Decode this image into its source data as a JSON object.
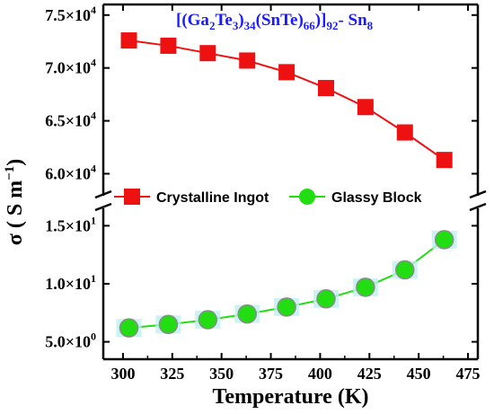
{
  "chart_data": {
    "type": "line",
    "title": "",
    "annotation": {
      "parts": [
        "[(Ga",
        "2",
        "Te",
        "3",
        ")",
        "34",
        "(SnTe)",
        "66",
        ")]",
        "92",
        "- Sn",
        "8"
      ],
      "subscript_mask": [
        false,
        true,
        false,
        true,
        false,
        true,
        false,
        true,
        false,
        true,
        false,
        true
      ]
    },
    "xlabel": "Temperature (K)",
    "ylabel": {
      "symbol": "σ",
      "unit_open": "( S m",
      "unit_exp": "−1",
      "unit_close": ")"
    },
    "xlim": [
      290,
      480
    ],
    "x_ticks": [
      300,
      325,
      350,
      375,
      400,
      425,
      450,
      475
    ],
    "x_tick_labels": [
      "300",
      "325",
      "350",
      "375",
      "400",
      "425",
      "450",
      "475"
    ],
    "broken_y_axis": true,
    "y_upper": {
      "ylim": [
        58000,
        76000
      ],
      "ticks": [
        60000,
        65000,
        70000,
        75000
      ],
      "tick_labels": [
        {
          "mant": "6.0×10",
          "exp": "4"
        },
        {
          "mant": "6.5×10",
          "exp": "4"
        },
        {
          "mant": "7.0×10",
          "exp": "4"
        },
        {
          "mant": "7.5×10",
          "exp": "4"
        }
      ]
    },
    "y_lower": {
      "ylim": [
        3.5,
        16.5
      ],
      "ticks": [
        5,
        10,
        15
      ],
      "tick_labels": [
        {
          "mant": "5.0×10",
          "exp": "0"
        },
        {
          "mant": "1.0×10",
          "exp": "1"
        },
        {
          "mant": "1.5×10",
          "exp": "1"
        }
      ]
    },
    "series": [
      {
        "name": "Crystalline Ingot",
        "marker": "square",
        "color": "#ee1111",
        "panel": "upper",
        "x": [
          303,
          323,
          343,
          363,
          383,
          403,
          423,
          443,
          463
        ],
        "y": [
          72600,
          72100,
          71400,
          70700,
          69600,
          68100,
          66300,
          63900,
          61300
        ]
      },
      {
        "name": "Glassy Block",
        "marker": "circle",
        "color": "#22dd11",
        "panel": "lower",
        "x": [
          303,
          323,
          343,
          363,
          383,
          403,
          423,
          443,
          463
        ],
        "y": [
          6.2,
          6.5,
          6.9,
          7.4,
          8.0,
          8.7,
          9.7,
          11.2,
          13.8
        ]
      }
    ],
    "legend": {
      "placement": "center-break",
      "entries": [
        "Crystalline Ingot",
        "Glassy Block"
      ]
    },
    "grid": false
  }
}
